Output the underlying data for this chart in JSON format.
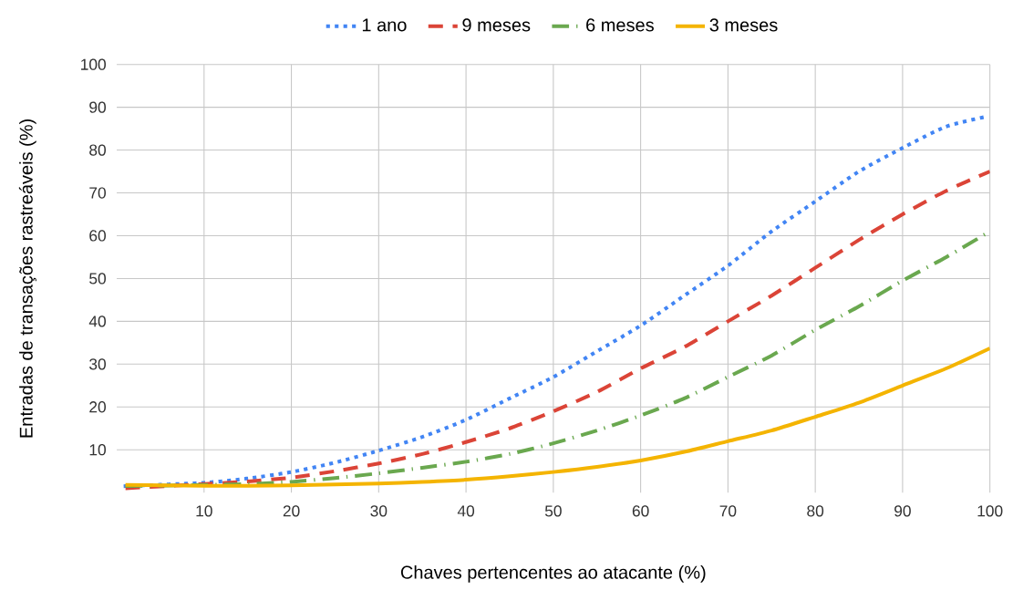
{
  "chart_data": {
    "type": "line",
    "xlabel": "Chaves pertencentes ao atacante (%)",
    "ylabel": "Entradas de transações rastreáveis (%)",
    "xlim": [
      0,
      100
    ],
    "ylim": [
      0,
      100
    ],
    "xticks": [
      10,
      20,
      30,
      40,
      50,
      60,
      70,
      80,
      90,
      100
    ],
    "yticks": [
      10,
      20,
      30,
      40,
      50,
      60,
      70,
      80,
      90,
      100
    ],
    "grid": true,
    "legend": "top",
    "x": [
      1,
      10,
      15,
      20,
      25,
      30,
      35,
      40,
      45,
      50,
      55,
      60,
      65,
      70,
      75,
      80,
      85,
      90,
      95,
      100
    ],
    "series": [
      {
        "name": "1 ano",
        "color": "#4285f4",
        "line_style": "dotted",
        "values": [
          1.5,
          2.3,
          3.3,
          4.8,
          7,
          9.8,
          13,
          17,
          22,
          27,
          33,
          39,
          46,
          53,
          61,
          68,
          75,
          80.5,
          85.5,
          88
        ]
      },
      {
        "name": "9 meses",
        "color": "#db4437",
        "line_style": "dashed",
        "values": [
          1,
          2,
          2.6,
          3.5,
          5,
          6.8,
          9,
          11.8,
          15,
          19,
          23.5,
          29,
          34,
          40,
          46,
          52.5,
          59,
          65,
          70.5,
          75
        ]
      },
      {
        "name": "6 meses",
        "color": "#6aa84f",
        "line_style": "dashdot",
        "values": [
          1.5,
          1.8,
          2,
          2.5,
          3.4,
          4.5,
          5.8,
          7.2,
          9,
          11.5,
          14.5,
          18,
          22,
          27,
          32,
          38,
          43.5,
          49.5,
          55,
          61
        ]
      },
      {
        "name": "3 meses",
        "color": "#f4b400",
        "line_style": "solid",
        "values": [
          1.8,
          1.6,
          1.6,
          1.7,
          1.9,
          2.1,
          2.5,
          3,
          3.8,
          4.8,
          6,
          7.5,
          9.5,
          12,
          14.5,
          17.7,
          21,
          25,
          29,
          33.7
        ]
      }
    ]
  }
}
